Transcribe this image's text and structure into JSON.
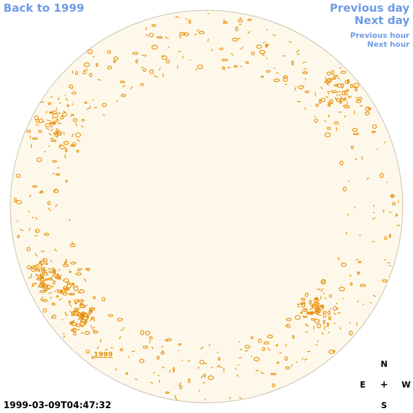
{
  "nav": {
    "back_label": "Back to 1999",
    "prev_day_label": "Previous day",
    "next_day_label": "Next day",
    "prev_hour_label": "Previous hour",
    "next_hour_label": "Next hour"
  },
  "disk": {
    "fill_color": "#fdf8ea",
    "outline_color": "#c8c0b0",
    "contour_color": "#e8900a",
    "year_label": "1999"
  },
  "timestamp": "1999-03-09T04:47:32",
  "compass": {
    "north": "N",
    "south": "S",
    "east": "E",
    "west": "W",
    "center": "+"
  }
}
